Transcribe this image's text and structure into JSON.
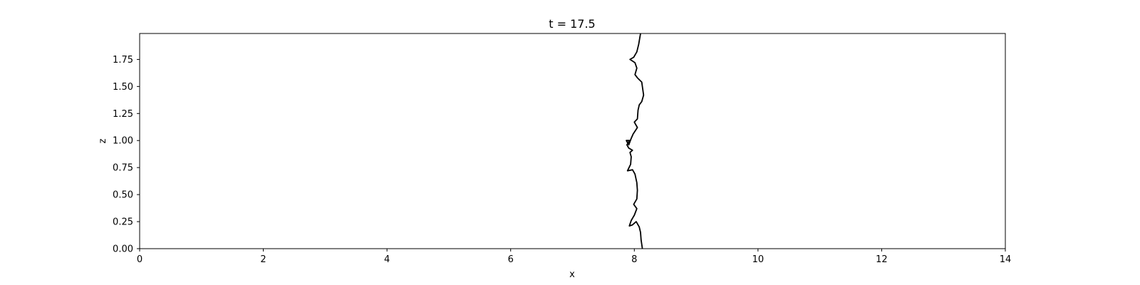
{
  "chart_data": {
    "type": "line",
    "title": "t = 17.5",
    "xlabel": "x",
    "ylabel": "z",
    "xlim": [
      0,
      14
    ],
    "ylim": [
      0,
      1.99
    ],
    "grid": false,
    "x_ticks": [
      0,
      2,
      4,
      6,
      8,
      10,
      12,
      14
    ],
    "x_tick_labels": [
      "0",
      "2",
      "4",
      "6",
      "8",
      "10",
      "12",
      "14"
    ],
    "y_ticks": [
      0,
      0.25,
      0.5,
      0.75,
      1.0,
      1.25,
      1.5,
      1.75
    ],
    "y_tick_labels": [
      "0.00",
      "0.25",
      "0.50",
      "0.75",
      "1.00",
      "1.25",
      "1.50",
      "1.75"
    ],
    "series": [
      {
        "color": "#000000",
        "points": [
          [
            8.13,
            0.0
          ],
          [
            8.11,
            0.08
          ],
          [
            8.1,
            0.15
          ],
          [
            8.08,
            0.2
          ],
          [
            8.03,
            0.25
          ],
          [
            7.97,
            0.22
          ],
          [
            7.92,
            0.21
          ],
          [
            7.95,
            0.26
          ],
          [
            8.0,
            0.31
          ],
          [
            8.04,
            0.37
          ],
          [
            7.99,
            0.41
          ],
          [
            8.04,
            0.46
          ],
          [
            8.05,
            0.54
          ],
          [
            8.04,
            0.61
          ],
          [
            8.01,
            0.69
          ],
          [
            7.97,
            0.73
          ],
          [
            7.89,
            0.72
          ],
          [
            7.94,
            0.78
          ],
          [
            7.95,
            0.85
          ],
          [
            7.93,
            0.89
          ],
          [
            7.97,
            0.91
          ],
          [
            7.91,
            0.93
          ],
          [
            7.88,
            0.96
          ],
          [
            7.92,
            1.0
          ],
          [
            7.87,
            1.0
          ],
          [
            7.91,
            0.96
          ],
          [
            7.95,
            1.02
          ],
          [
            7.98,
            1.06
          ],
          [
            8.05,
            1.12
          ],
          [
            8.0,
            1.17
          ],
          [
            8.05,
            1.2
          ],
          [
            8.06,
            1.28
          ],
          [
            8.08,
            1.33
          ],
          [
            8.12,
            1.36
          ],
          [
            8.15,
            1.42
          ],
          [
            8.12,
            1.54
          ],
          [
            8.05,
            1.58
          ],
          [
            8.01,
            1.61
          ],
          [
            8.04,
            1.67
          ],
          [
            8.01,
            1.72
          ],
          [
            7.93,
            1.75
          ],
          [
            7.99,
            1.77
          ],
          [
            8.04,
            1.82
          ],
          [
            8.07,
            1.89
          ],
          [
            8.1,
            1.99
          ]
        ]
      }
    ]
  }
}
